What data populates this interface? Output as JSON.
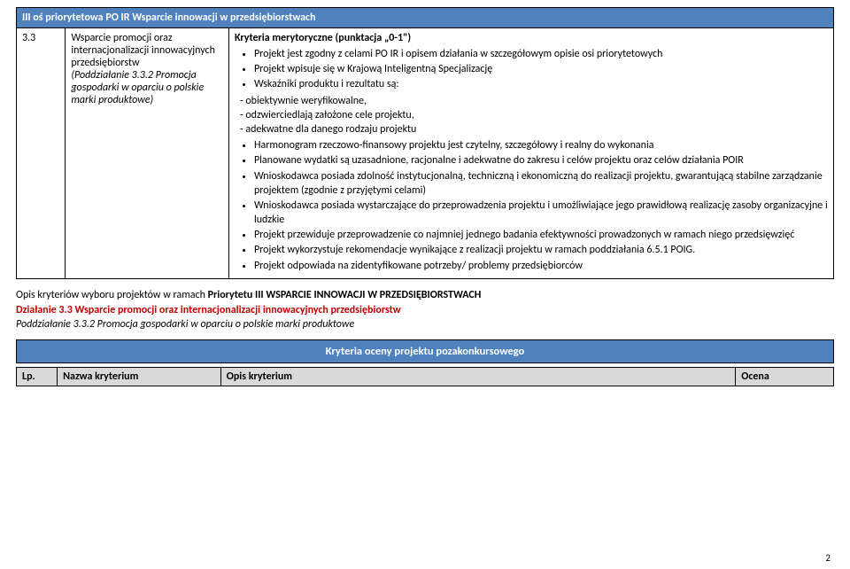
{
  "headerRow": "III oś priorytetowa PO IR Wsparcie innowacji w przedsiębiorstwach",
  "leftCol": {
    "num": "3.3",
    "title": "Wsparcie promocji oraz internacjonalizacji innowacyjnych przedsiębiorstw",
    "sub": "(Poddziałanie 3.3.2 Promocja gospodarki w oparciu o polskie marki produktowe)"
  },
  "rightCol": {
    "kryteriaLabel": "Kryteria merytoryczne (punktacja „0-1\")",
    "bulletsTop": [
      "Projekt jest zgodny z celami PO IR i opisem działania w szczegółowym opisie osi priorytetowych",
      "Projekt wpisuje się w Krajową Inteligentną Specjalizację",
      "Wskaźniki produktu i rezultatu są:"
    ],
    "dashes": [
      "- obiektywnie weryfikowalne,",
      "- odzwierciedlają założone cele projektu,",
      "- adekwatne dla danego rodzaju projektu"
    ],
    "bulletsBottom": [
      "Harmonogram rzeczowo-finansowy projektu jest czytelny, szczegółowy i realny do wykonania",
      "Planowane wydatki są uzasadnione, racjonalne i adekwatne do zakresu i celów projektu oraz celów działania POIR",
      "Wnioskodawca posiada zdolność instytucjonalną, techniczną i ekonomiczną do realizacji projektu, gwarantującą stabilne zarządzanie projektem (zgodnie z przyjętymi celami)",
      "Wnioskodawca posiada wystarczające do przeprowadzenia projektu i umożliwiające jego prawidłową realizację zasoby organizacyjne i ludzkie",
      "Projekt przewiduje przeprowadzenie co najmniej jednego badania efektywności prowadzonych w ramach niego przedsięwzięć",
      "Projekt wykorzystuje rekomendacje wynikające z realizacji projektu w ramach poddziałania 6.5.1 POIG.",
      "Projekt odpowiada na zidentyfikowane potrzeby/ problemy przedsiębiorców"
    ]
  },
  "section": {
    "line1a": "Opis kryteriów wyboru projektów w ramach ",
    "line1b": "Priorytetu III WSPARCIE INNOWACJI W PRZEDSIĘBIORSTWACH",
    "line2": "Działanie 3.3 Wsparcie promocji oraz internacjonalizacji innowacyjnych przedsiębiorstw",
    "line3": "Poddziałanie 3.3.2 Promocja gospodarki w oparciu o polskie marki produktowe"
  },
  "blueBar": "Kryteria oceny projektu pozakonkursowego",
  "criteriaHeaders": {
    "lp": "Lp.",
    "name": "Nazwa kryterium",
    "desc": "Opis kryterium",
    "score": "Ocena"
  },
  "pageNumber": "2"
}
